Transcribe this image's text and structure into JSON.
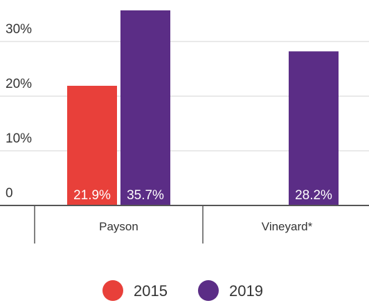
{
  "chart_data": {
    "type": "bar",
    "categories": [
      "Payson",
      "Vineyard*"
    ],
    "series": [
      {
        "name": "2015",
        "color": "#e8403a",
        "values": [
          21.9,
          null
        ],
        "value_labels": [
          "21.9%",
          null
        ]
      },
      {
        "name": "2019",
        "color": "#5b2d86",
        "values": [
          35.7,
          28.2
        ],
        "value_labels": [
          "35.7%",
          "28.2%"
        ]
      }
    ],
    "ylim": [
      0,
      37.6
    ],
    "yticks": [
      0,
      {
        "value": 10,
        "label": "10%"
      },
      {
        "value": 20,
        "label": "20%"
      },
      {
        "value": 30,
        "label": "30%"
      }
    ],
    "grid": true
  }
}
